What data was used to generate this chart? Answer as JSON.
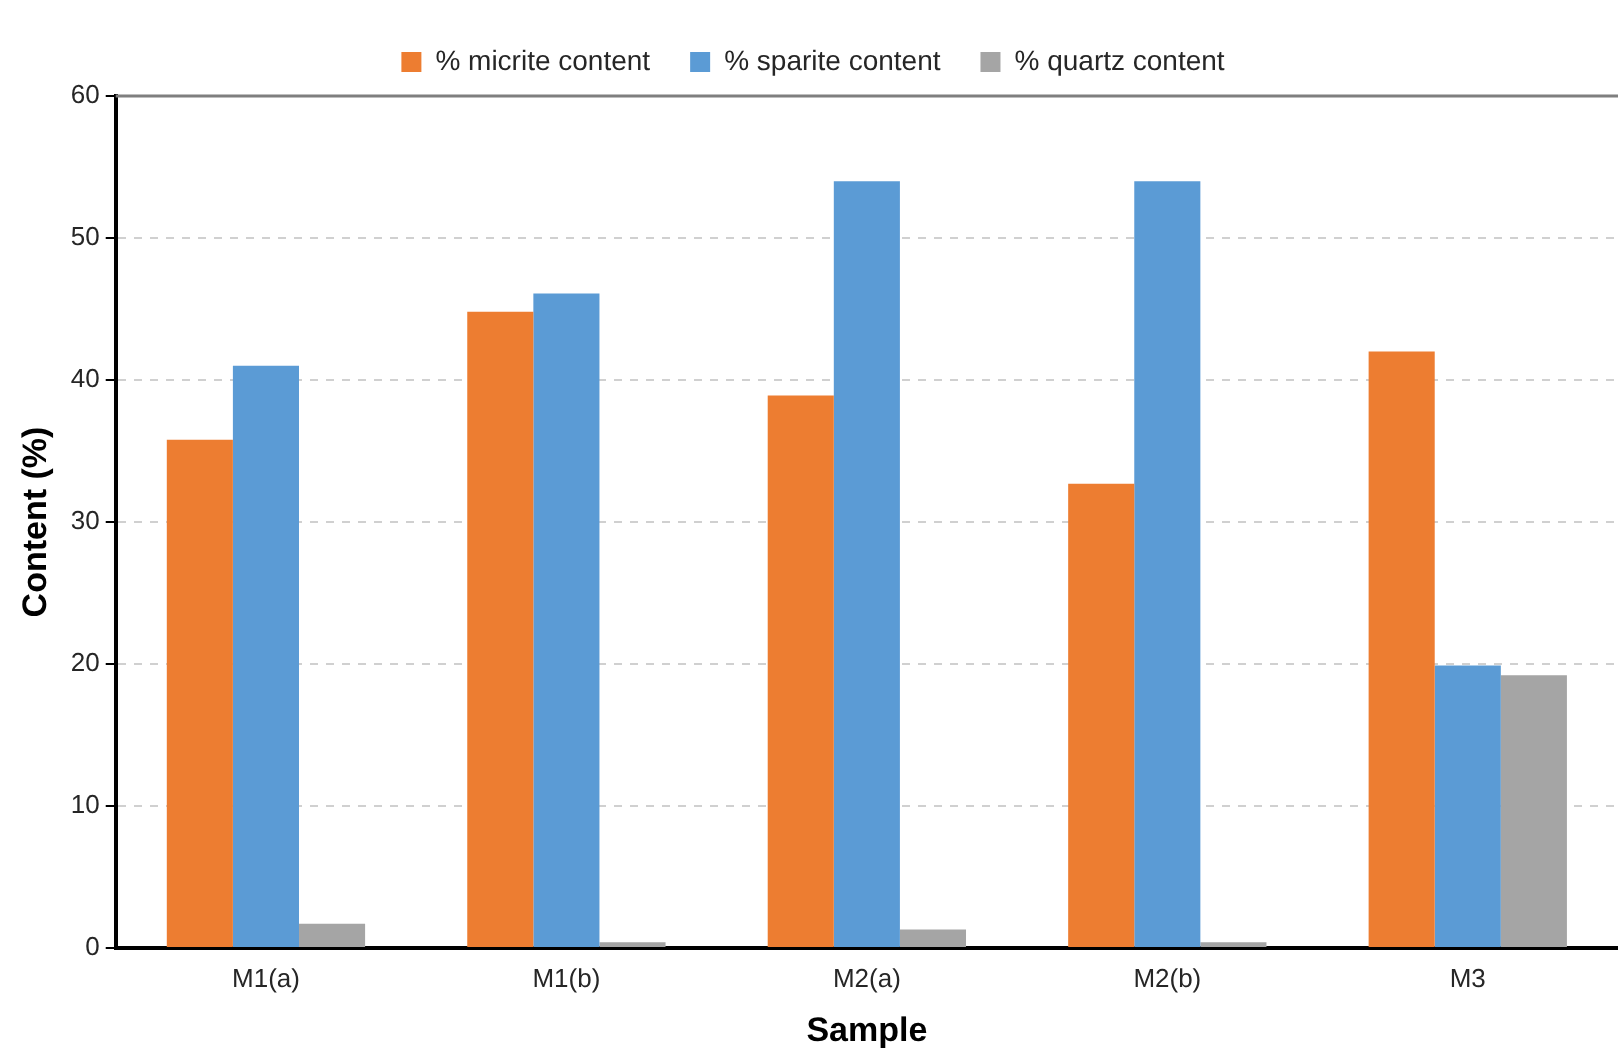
{
  "chart_data": {
    "type": "bar",
    "xlabel": "Sample",
    "ylabel": "Content (%)",
    "categories": [
      "M1(a)",
      "M1(b)",
      "M2(a)",
      "M2(b)",
      "M3"
    ],
    "series": [
      {
        "name": "% micrite content",
        "color": "#ed7d31",
        "values": [
          35.8,
          44.8,
          38.9,
          32.7,
          42.0
        ]
      },
      {
        "name": "% sparite content",
        "color": "#5b9bd5",
        "values": [
          41.0,
          46.1,
          54.0,
          54.0,
          19.9
        ]
      },
      {
        "name": "% quartz content",
        "color": "#a5a5a5",
        "values": [
          1.7,
          0.4,
          1.3,
          0.4,
          19.2
        ]
      }
    ],
    "ylim": [
      0,
      60
    ],
    "yticks": [
      0,
      10,
      20,
      30,
      40,
      50,
      60
    ],
    "grid": "y",
    "legend": "top"
  }
}
